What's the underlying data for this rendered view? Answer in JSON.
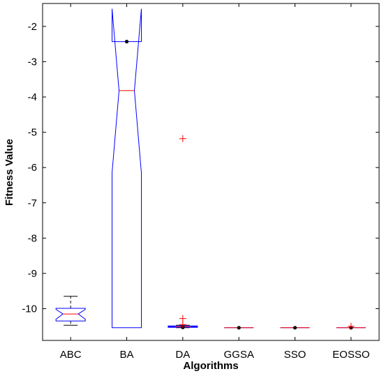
{
  "chart_data": {
    "type": "boxplot",
    "title": "",
    "xlabel": "Algorithms",
    "ylabel": "Fitness Value",
    "ylim": [
      -10.9,
      -1.35
    ],
    "yticks": [
      -2,
      -3,
      -4,
      -5,
      -6,
      -7,
      -8,
      -9,
      -10
    ],
    "ytick_labels": [
      "-2",
      "-3",
      "-4",
      "-5",
      "-6",
      "-7",
      "-8",
      "-9",
      "-10"
    ],
    "notched": true,
    "grid": false,
    "legend": "none",
    "categories": [
      "ABC",
      "BA",
      "DA",
      "GGSA",
      "SSO",
      "EOSSO"
    ],
    "boxes": [
      {
        "category": "ABC",
        "whisker_low": -10.47,
        "q1": -10.35,
        "median": -10.15,
        "q3": -9.99,
        "whisker_high": -9.65,
        "notch_low": -10.3,
        "notch_high": -10.02,
        "mean": null,
        "outliers": []
      },
      {
        "category": "BA",
        "whisker_low": -10.54,
        "q1": -10.54,
        "median": -3.82,
        "q3": -2.43,
        "whisker_high": -2.43,
        "notch_low": -6.15,
        "notch_high": -1.5,
        "mean": -2.43,
        "outliers": []
      },
      {
        "category": "DA",
        "whisker_low": -10.54,
        "q1": -10.53,
        "median": -10.51,
        "q3": -10.49,
        "whisker_high": -10.47,
        "notch_low": -10.52,
        "notch_high": -10.5,
        "mean": -10.53,
        "outliers": [
          -5.18,
          -10.28,
          -10.45
        ]
      },
      {
        "category": "GGSA",
        "whisker_low": -10.54,
        "q1": -10.54,
        "median": -10.54,
        "q3": -10.54,
        "whisker_high": -10.54,
        "notch_low": -10.54,
        "notch_high": -10.54,
        "mean": -10.54,
        "outliers": []
      },
      {
        "category": "SSO",
        "whisker_low": -10.54,
        "q1": -10.54,
        "median": -10.54,
        "q3": -10.54,
        "whisker_high": -10.54,
        "notch_low": -10.54,
        "notch_high": -10.54,
        "mean": -10.54,
        "outliers": []
      },
      {
        "category": "EOSSO",
        "whisker_low": -10.54,
        "q1": -10.54,
        "median": -10.54,
        "q3": -10.54,
        "whisker_high": -10.54,
        "notch_low": -10.54,
        "notch_high": -10.54,
        "mean": -10.54,
        "outliers": [
          -10.5
        ]
      }
    ],
    "colors": {
      "box": "#0000ff",
      "median": "#ff0000",
      "whisker": "#000000",
      "outlier": "#ff0000",
      "mean": "#000000"
    }
  }
}
